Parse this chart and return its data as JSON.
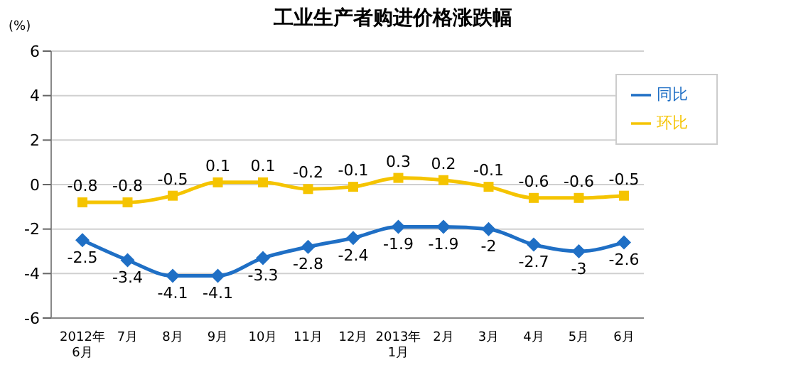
{
  "chart_data": {
    "type": "line",
    "title": "工业生产者购进价格涨跌幅",
    "ylabel": "(%)",
    "categories": [
      "2012年\n6月",
      "7月",
      "8月",
      "9月",
      "10月",
      "11月",
      "12月",
      "2013年\n1月",
      "2月",
      "3月",
      "4月",
      "5月",
      "6月"
    ],
    "series": [
      {
        "name": "同比",
        "color": "#1f6fc5",
        "marker": "diamond",
        "values": [
          -2.5,
          -3.4,
          -4.1,
          -4.1,
          -3.3,
          -2.8,
          -2.4,
          -1.9,
          -1.9,
          -2.0,
          -2.7,
          -3.0,
          -2.6
        ]
      },
      {
        "name": "环比",
        "color": "#f5c400",
        "marker": "square",
        "values": [
          -0.8,
          -0.8,
          -0.5,
          0.1,
          0.1,
          -0.2,
          -0.1,
          0.3,
          0.2,
          -0.1,
          -0.6,
          -0.6,
          -0.5
        ]
      }
    ],
    "ylim": [
      -6,
      6
    ],
    "yticks": [
      -6,
      -4,
      -2,
      0,
      2,
      4,
      6
    ],
    "grid": "y",
    "legend": "top right",
    "data_labels": true
  }
}
